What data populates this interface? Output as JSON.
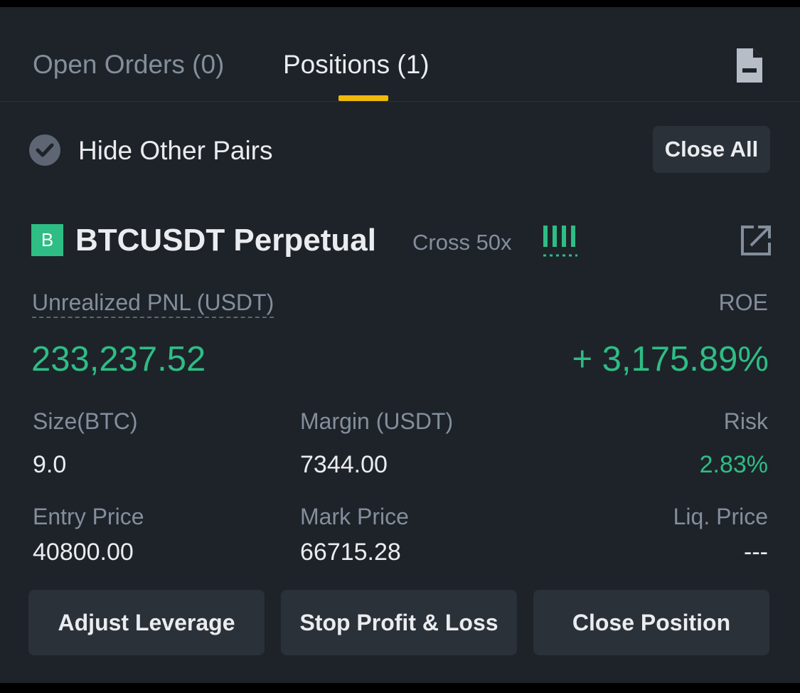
{
  "tabs": {
    "open_orders": "Open Orders (0)",
    "positions": "Positions (1)",
    "active": "positions"
  },
  "toolbar": {
    "hide_other_pairs": "Hide Other Pairs",
    "hide_other_pairs_checked": true,
    "close_all": "Close All"
  },
  "position": {
    "symbol_badge": "B",
    "symbol": "BTCUSDT Perpetual",
    "margin_mode": "Cross 50x",
    "pnl_label": "Unrealized PNL (USDT)",
    "roe_label": "ROE",
    "pnl_value": "233,237.52",
    "roe_value": "+ 3,175.89%",
    "size_label": "Size(BTC)",
    "size_value": "9.0",
    "margin_label": "Margin (USDT)",
    "margin_value": "7344.00",
    "risk_label": "Risk",
    "risk_value": "2.83%",
    "entry_label": "Entry Price",
    "entry_value": "40800.00",
    "mark_label": "Mark Price",
    "mark_value": "66715.28",
    "liq_label": "Liq. Price",
    "liq_value": "---"
  },
  "actions": {
    "adjust_leverage": "Adjust Leverage",
    "stop_profit_loss": "Stop Profit & Loss",
    "close_position": "Close Position"
  },
  "icons": {
    "document": "document-icon",
    "checkbox": "check-circle-icon",
    "share": "share-icon",
    "risk_bars": "risk-bars-icon"
  },
  "colors": {
    "background": "#1e2329",
    "accent": "#f0b90b",
    "positive": "#2ebd85",
    "text_primary": "#eaecef",
    "text_secondary": "#848e9c",
    "button": "#2b3139"
  }
}
